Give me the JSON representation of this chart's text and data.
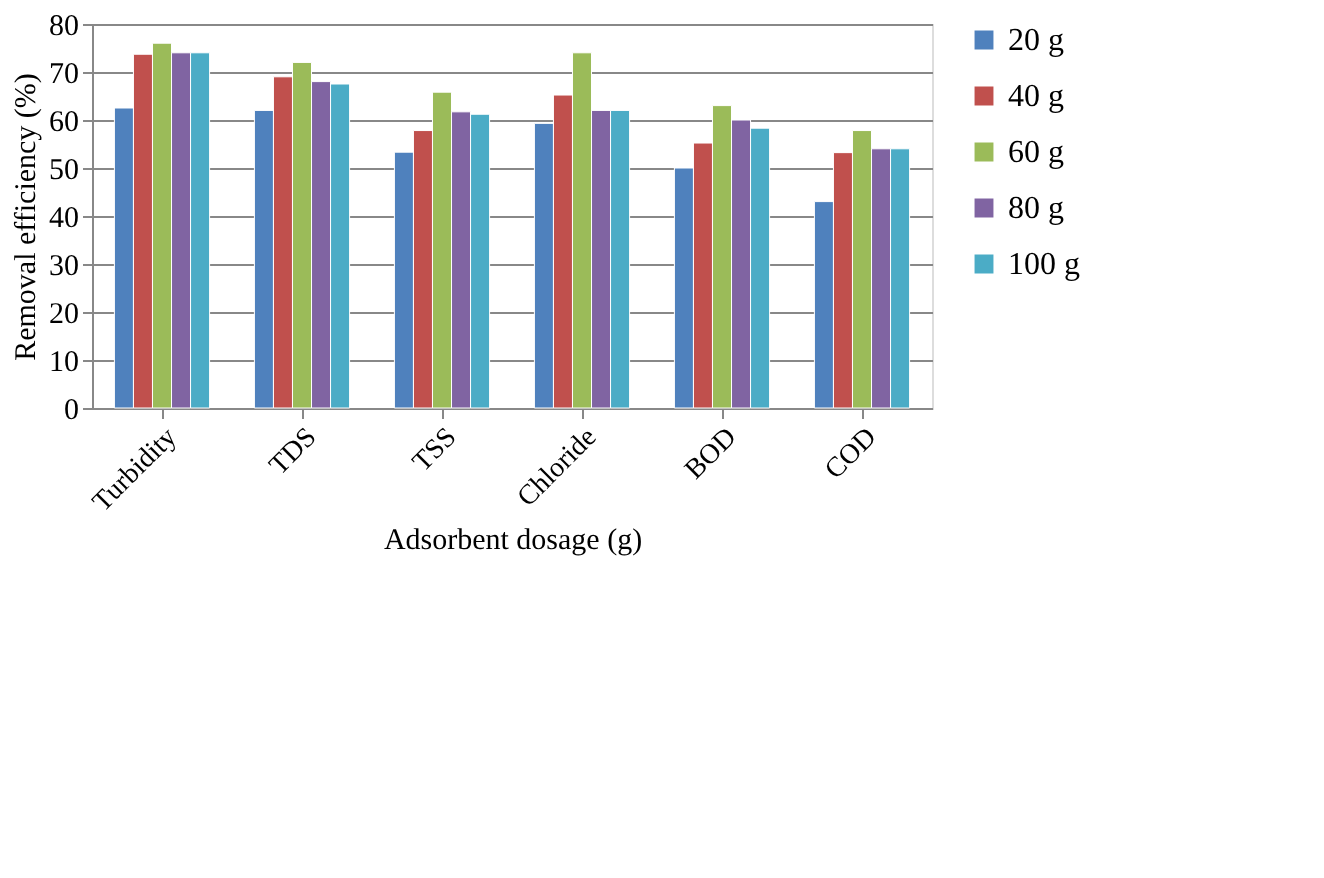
{
  "chart_data": {
    "type": "bar",
    "xlabel": "Adsorbent dosage (g)",
    "ylabel": "Removal efficiency (%)",
    "categories": [
      "Turbidity",
      "TDS",
      "TSS",
      "Chloride",
      "BOD",
      "COD"
    ],
    "series": [
      {
        "name": "20 g",
        "color": "#4f81bd",
        "values": [
          62.5,
          62,
          53.3,
          59.3,
          50,
          43
        ]
      },
      {
        "name": "40 g",
        "color": "#c0504d",
        "values": [
          73.7,
          69,
          57.8,
          65.2,
          55.2,
          53.2
        ]
      },
      {
        "name": "60 g",
        "color": "#9bbb59",
        "values": [
          76,
          72,
          65.8,
          74,
          63,
          57.8
        ]
      },
      {
        "name": "80 g",
        "color": "#8064a2",
        "values": [
          74,
          68,
          61.7,
          62,
          60,
          54
        ]
      },
      {
        "name": "100 g",
        "color": "#4bacc6",
        "values": [
          74,
          67.5,
          61.2,
          62,
          58.3,
          54
        ]
      }
    ],
    "ylim": [
      0,
      80
    ],
    "yticks": [
      0,
      10,
      20,
      30,
      40,
      50,
      60,
      70,
      80
    ],
    "grid": "y",
    "legend": "right"
  }
}
